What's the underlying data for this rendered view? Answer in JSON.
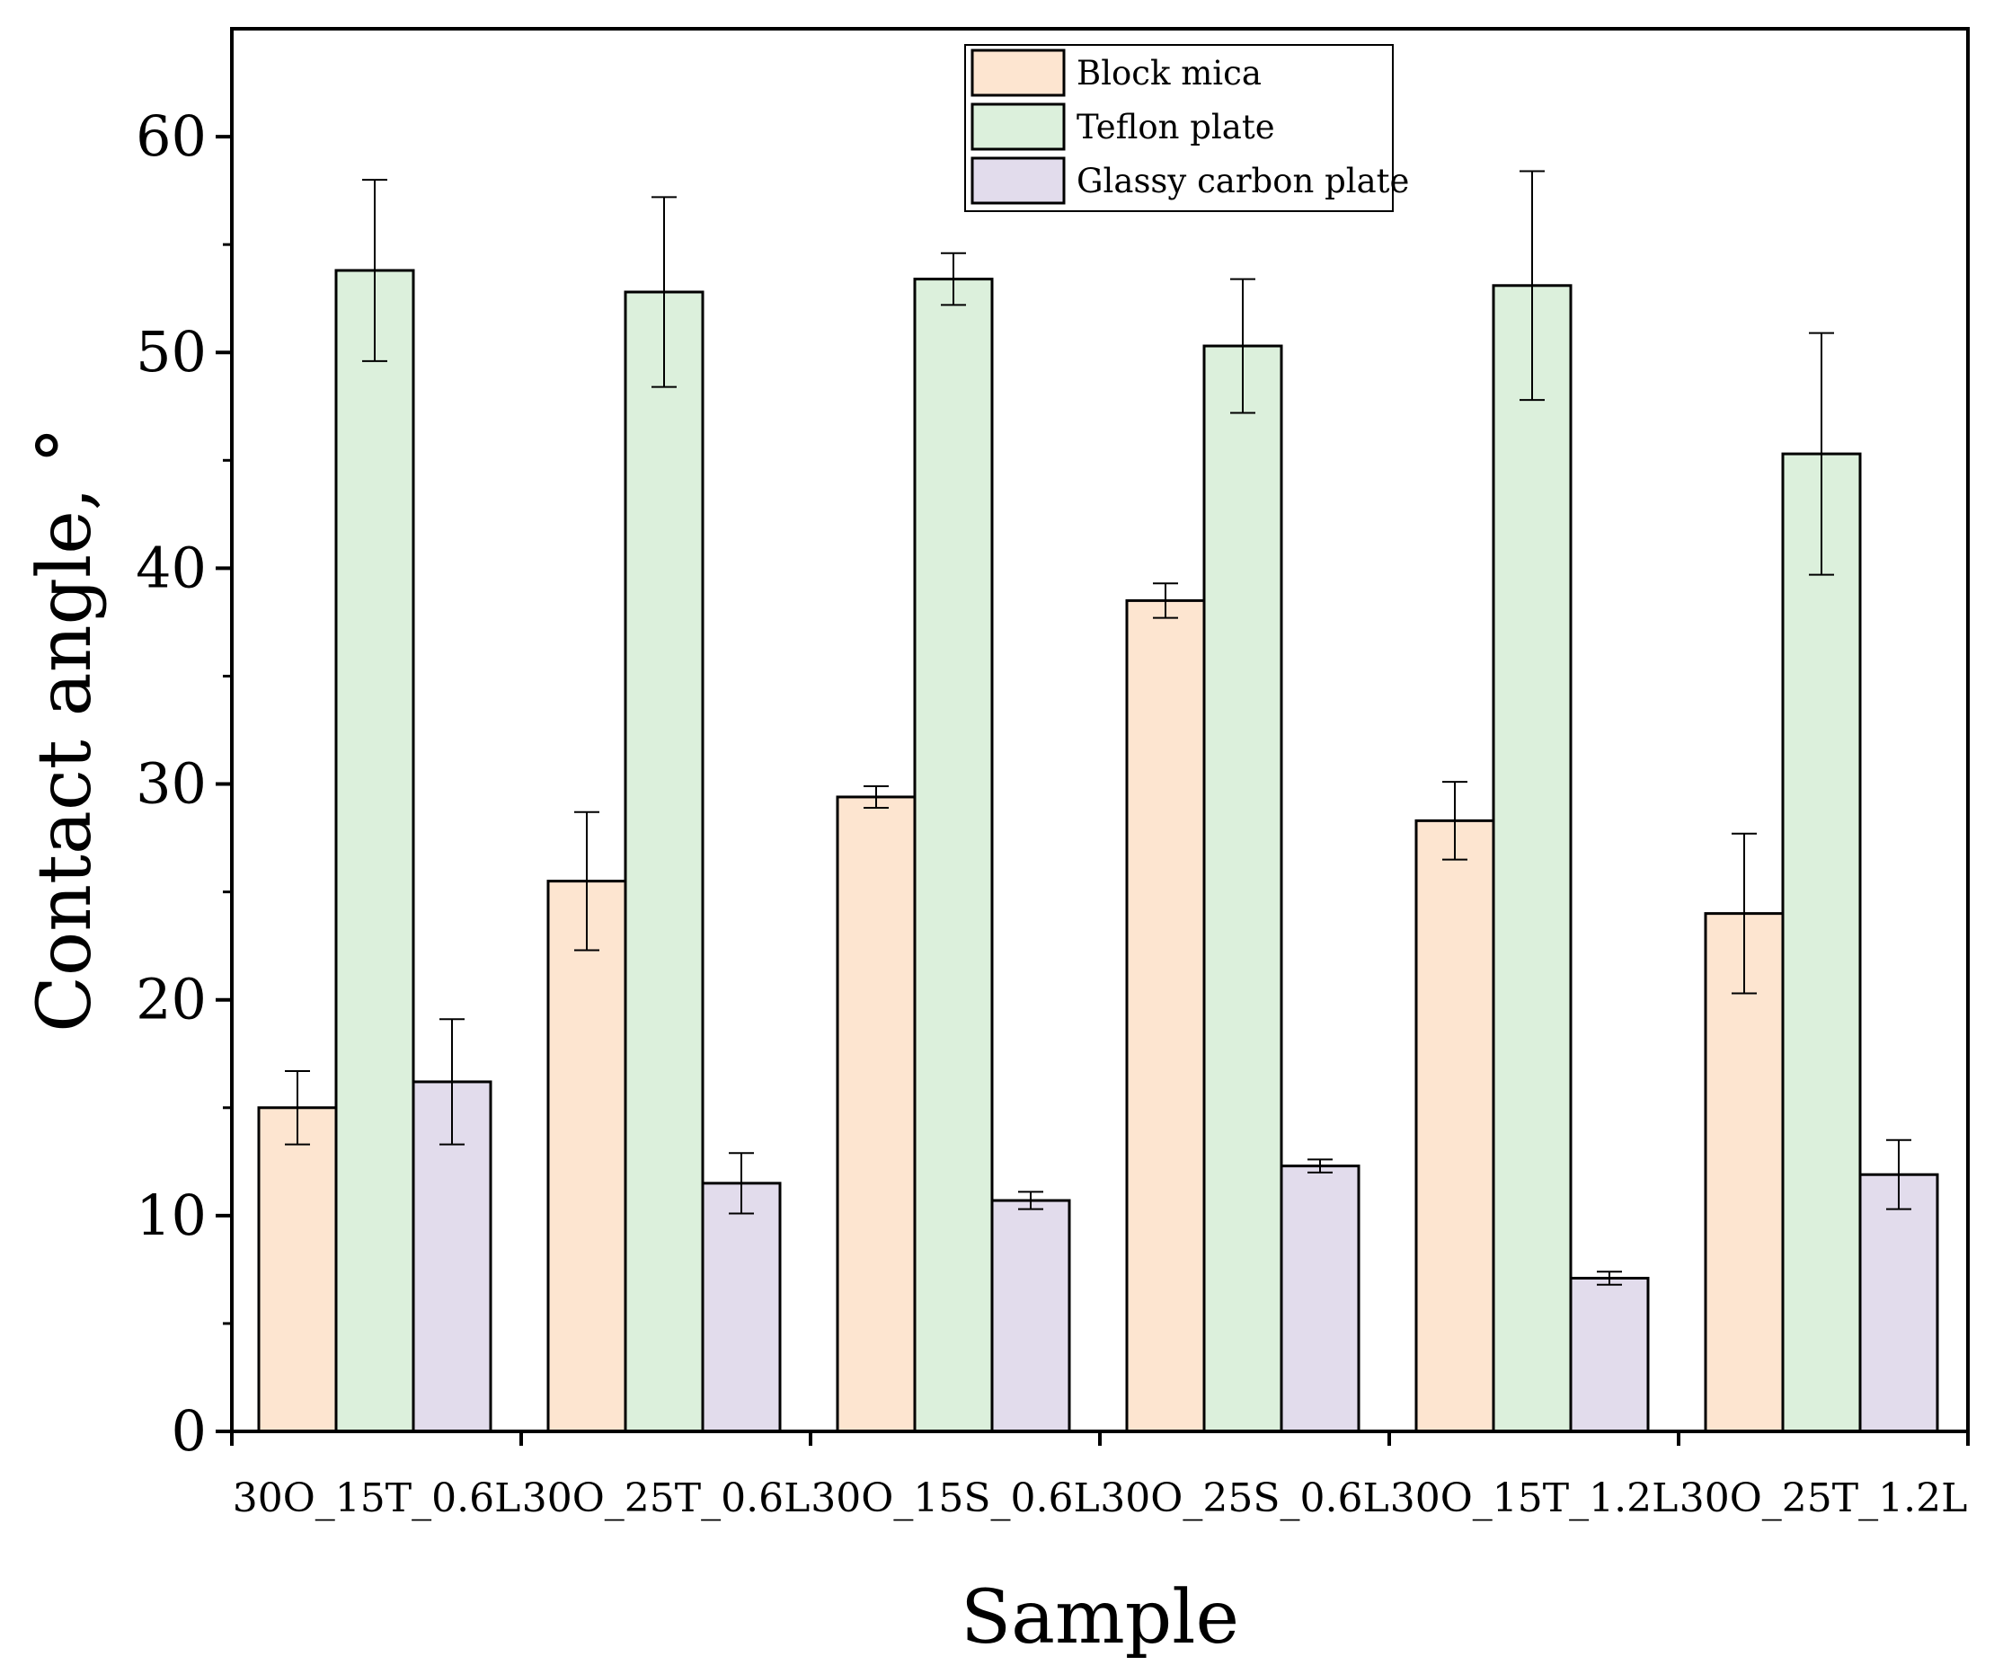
{
  "chart_data": {
    "type": "bar",
    "title": "",
    "xlabel": "Sample",
    "ylabel": "Contact angle, °",
    "ylim": [
      0,
      65
    ],
    "yticks": [
      0,
      10,
      20,
      30,
      40,
      50,
      60
    ],
    "ytick_labels": [
      "0",
      "10",
      "20",
      "30",
      "40",
      "50",
      "60"
    ],
    "grid": false,
    "legend_position": "top-center",
    "categories": [
      "30O_15T_0.6L",
      "30O_25T_0.6L",
      "30O_15S_0.6L",
      "30O_25S_0.6L",
      "30O_15T_1.2L",
      "30O_25T_1.2L"
    ],
    "series": [
      {
        "name": "Block mica",
        "color": "#fde5d0",
        "values": [
          15.0,
          25.5,
          29.4,
          38.5,
          28.3,
          24.0
        ],
        "errors": [
          1.7,
          3.2,
          0.5,
          0.8,
          1.8,
          3.7
        ]
      },
      {
        "name": "Teflon plate",
        "color": "#dcf0dc",
        "values": [
          53.8,
          52.8,
          53.4,
          50.3,
          53.1,
          45.3
        ],
        "errors": [
          4.2,
          4.4,
          1.2,
          3.1,
          5.3,
          5.6
        ]
      },
      {
        "name": "Glassy carbon plate",
        "color": "#e2dcec",
        "values": [
          16.2,
          11.5,
          10.7,
          12.3,
          7.1,
          11.9
        ],
        "errors": [
          2.9,
          1.4,
          0.4,
          0.3,
          0.3,
          1.6
        ]
      }
    ]
  }
}
